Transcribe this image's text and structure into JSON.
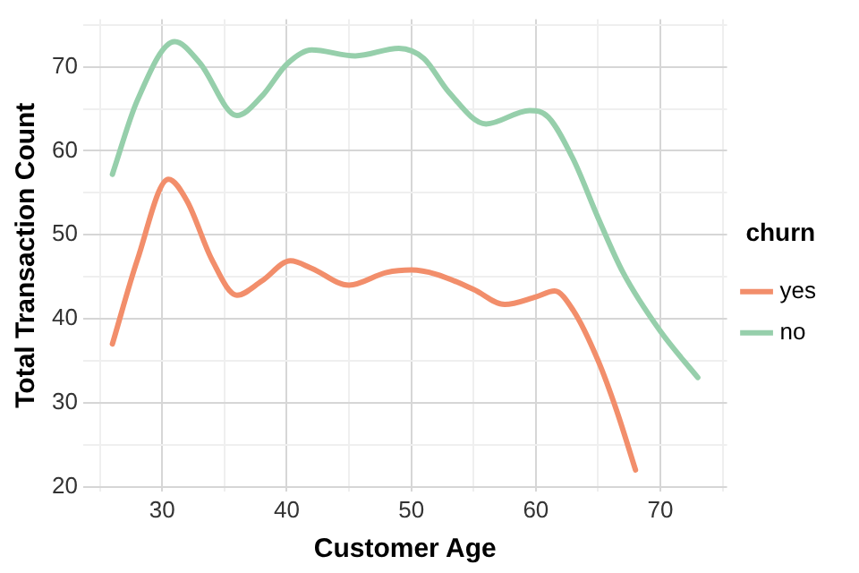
{
  "chart_data": {
    "type": "line",
    "xlabel": "Customer Age",
    "ylabel": "Total Transaction Count",
    "legend_title": "churn",
    "legend": "right",
    "grid": true,
    "marker": "none",
    "line_style": "solid",
    "xlim": [
      23.65,
      75.35
    ],
    "xticks": [
      30,
      40,
      50,
      60,
      70
    ],
    "ylim": [
      19.45,
      75.65
    ],
    "yticks": [
      20,
      30,
      40,
      50,
      60,
      70
    ],
    "series": [
      {
        "name": "yes",
        "color": "#f28e6b",
        "x": [
          26,
          28,
          30.5,
          32,
          34,
          36,
          38,
          40.3,
          42,
          45,
          48,
          50,
          52,
          55,
          57.5,
          60,
          61.5,
          63,
          65,
          66.5,
          68
        ],
        "values": [
          37,
          47,
          56.6,
          54,
          47,
          42.8,
          44.5,
          46.9,
          46,
          44,
          45.5,
          45.8,
          45.3,
          43.5,
          41.7,
          42.6,
          43.3,
          41,
          35,
          29,
          22
        ]
      },
      {
        "name": "no",
        "color": "#96cfab",
        "x": [
          26,
          28,
          31,
          33,
          36,
          38,
          40,
          42,
          45.5,
          49,
          51,
          53,
          56,
          59.5,
          61,
          63,
          65,
          67,
          70,
          73
        ],
        "values": [
          57.2,
          66,
          73,
          70.5,
          64.2,
          66.5,
          70.3,
          72,
          71.3,
          72.2,
          71,
          67,
          63.2,
          64.8,
          64,
          59,
          52,
          45.5,
          38.5,
          33
        ]
      }
    ]
  }
}
